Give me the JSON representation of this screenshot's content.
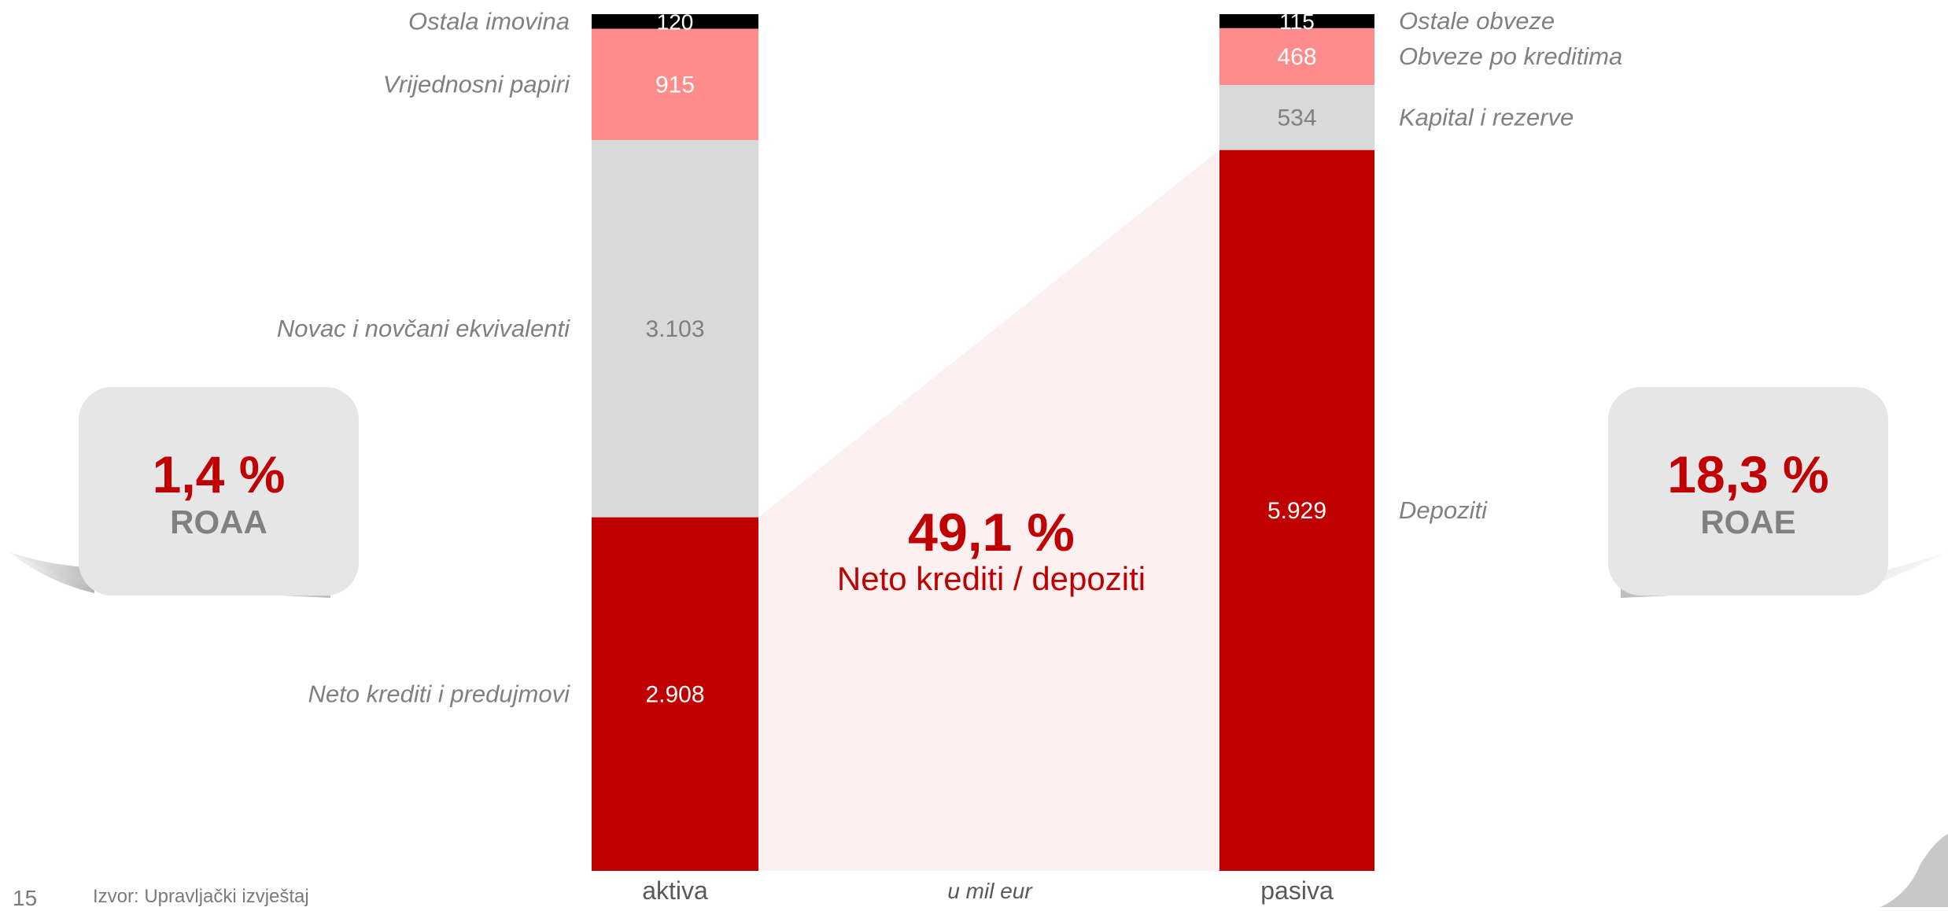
{
  "chart_data": {
    "type": "bar",
    "stacked": true,
    "unit_note": "u mil eur",
    "categories": [
      "aktiva",
      "pasiva"
    ],
    "stacks": {
      "aktiva": [
        {
          "name": "Neto krediti i predujmovi",
          "value": 2908,
          "value_label": "2.908",
          "color": "#C00000",
          "text_color": "#ffffff"
        },
        {
          "name": "Novac i novčani ekvivalenti",
          "value": 3103,
          "value_label": "3.103",
          "color": "#D9D9D9",
          "text_color": "#7f7f7f"
        },
        {
          "name": "Vrijednosni papiri",
          "value": 915,
          "value_label": "915",
          "color": "#FF8B8B",
          "text_color": "#ffffff"
        },
        {
          "name": "Ostala imovina",
          "value": 120,
          "value_label": "120",
          "color": "#000000",
          "text_color": "#ffffff"
        }
      ],
      "pasiva": [
        {
          "name": "Depoziti",
          "value": 5929,
          "value_label": "5.929",
          "color": "#C00000",
          "text_color": "#ffffff"
        },
        {
          "name": "Kapital i rezerve",
          "value": 534,
          "value_label": "534",
          "color": "#D9D9D9",
          "text_color": "#7f7f7f"
        },
        {
          "name": "Obveze po kreditima",
          "value": 468,
          "value_label": "468",
          "color": "#FF8B8B",
          "text_color": "#ffffff"
        },
        {
          "name": "Ostale obveze",
          "value": 115,
          "value_label": "115",
          "color": "#000000",
          "text_color": "#ffffff"
        }
      ]
    },
    "ratio": {
      "value": "49,1 %",
      "label": "Neto krediti / depoziti",
      "fill": "#FDF0F0"
    }
  },
  "stats": [
    {
      "id": "roaa",
      "value": "1,4 %",
      "label": "ROAA"
    },
    {
      "id": "roae",
      "value": "18,3 %",
      "label": "ROAE"
    }
  ],
  "footer": {
    "page_number": "15",
    "source": "Izvor: Upravljački izvještaj"
  },
  "colors": {
    "accent": "#C00000",
    "label_grey": "#808080",
    "box_grey": "#E6E6E6",
    "shadow_grey": "#BFBFBF"
  }
}
